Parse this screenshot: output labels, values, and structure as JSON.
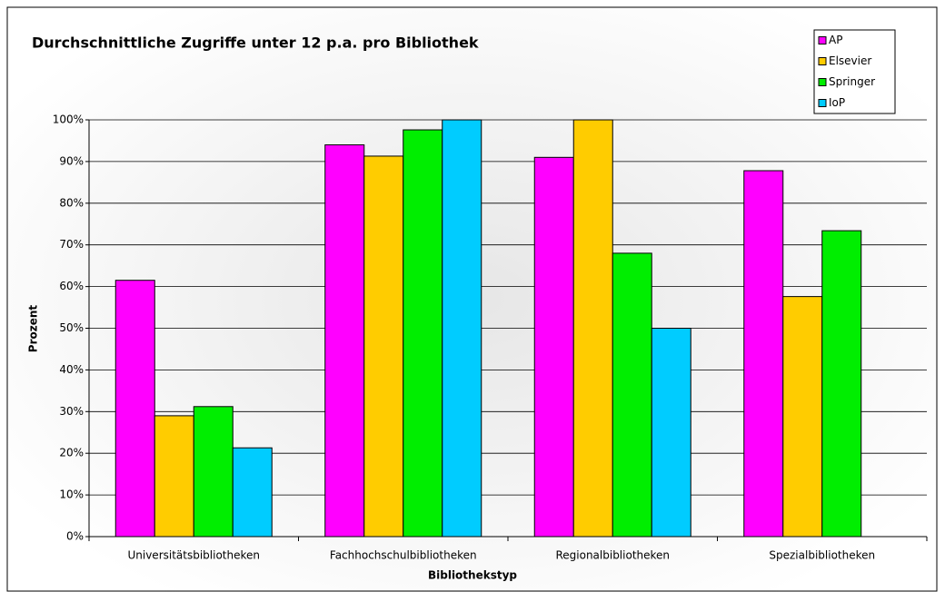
{
  "chart_data": {
    "type": "bar",
    "title": "Durchschnittliche Zugriffe unter 12 p.a. pro Bibliothek",
    "x_label": "Bibliothekstyp",
    "y_label": "Prozent",
    "categories": [
      "Universitätsbibliotheken",
      "Fachhochschulbibliotheken",
      "Regionalbibliotheken",
      "Spezialbibliotheken"
    ],
    "series": [
      {
        "name": "AP",
        "color": "#ff00ff",
        "values": [
          61.5,
          94,
          91,
          87.8
        ]
      },
      {
        "name": "Elsevier",
        "color": "#ffcc00",
        "values": [
          29,
          91.3,
          100,
          57.6
        ]
      },
      {
        "name": "Springer",
        "color": "#00ee00",
        "values": [
          31.2,
          97.6,
          68,
          73.4
        ]
      },
      {
        "name": "IoP",
        "color": "#00ccff",
        "values": [
          21.3,
          100,
          50,
          null
        ]
      }
    ],
    "ylim": [
      0,
      100
    ],
    "yticks": [
      {
        "value": 0,
        "label": "0%"
      },
      {
        "value": 10,
        "label": "10%"
      },
      {
        "value": 20,
        "label": "20%"
      },
      {
        "value": 30,
        "label": "30%"
      },
      {
        "value": 40,
        "label": "40%"
      },
      {
        "value": 50,
        "label": "50%"
      },
      {
        "value": 60,
        "label": "60%"
      },
      {
        "value": 70,
        "label": "70%"
      },
      {
        "value": 80,
        "label": "80%"
      },
      {
        "value": 90,
        "label": "90%"
      },
      {
        "value": 100,
        "label": "100%"
      }
    ],
    "grid": true,
    "legend": "top-right"
  }
}
